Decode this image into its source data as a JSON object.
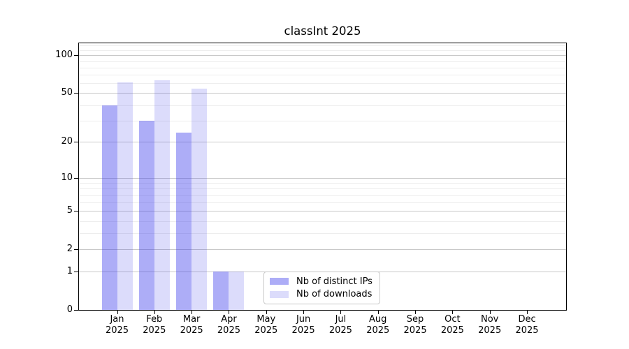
{
  "figure": {
    "background": "#ffffff",
    "axis_color": "#000000",
    "grid_major_color": "#c9c9c9",
    "grid_minor_color": "#ededed",
    "bar_color_distinct_ips": "#a8a8f2",
    "bar_color_downloads": "#dcdcfa"
  },
  "chart_data": {
    "type": "bar",
    "title": "classInt 2025",
    "yscale": "log1p",
    "grid": "horizontal",
    "legend_position": "inside-bottom-center",
    "year": "2025",
    "categories": [
      "Jan",
      "Feb",
      "Mar",
      "Apr",
      "May",
      "Jun",
      "Jul",
      "Aug",
      "Sep",
      "Oct",
      "Nov",
      "Dec"
    ],
    "series": [
      {
        "name": "Nb of distinct IPs",
        "fill": "rgba(60,60,235,0.42)",
        "values": [
          40,
          30,
          24,
          1,
          0,
          0,
          0,
          0,
          0,
          0,
          0,
          0
        ]
      },
      {
        "name": "Nb of downloads",
        "fill": "rgba(60,60,235,0.18)",
        "values": [
          61,
          63,
          54,
          1,
          0,
          0,
          0,
          0,
          0,
          0,
          0,
          0
        ]
      }
    ],
    "yticks": [
      0,
      1,
      2,
      5,
      10,
      20,
      50,
      100
    ],
    "minor_gridlines": [
      3,
      4,
      6,
      7,
      8,
      9,
      30,
      40,
      60,
      70,
      80,
      90,
      110,
      120
    ],
    "ylim": [
      0,
      125
    ],
    "xlabel": "",
    "ylabel": ""
  }
}
